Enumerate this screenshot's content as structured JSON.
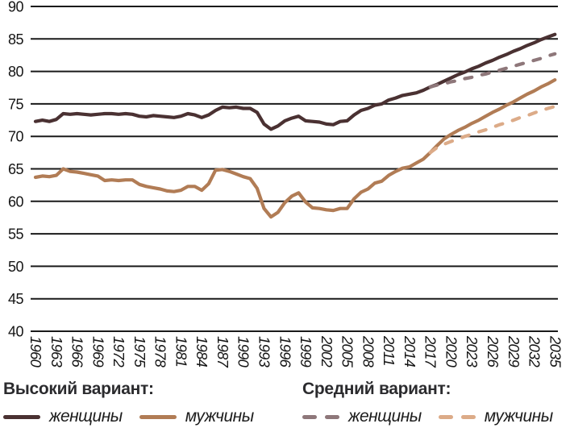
{
  "legend": {
    "high": {
      "heading": "Высокий вариант:",
      "items": [
        {
          "label": "женщины",
          "color": "#4a3132",
          "style": "solid"
        },
        {
          "label": "мужчины",
          "color": "#b17c55",
          "style": "solid"
        }
      ]
    },
    "medium": {
      "heading": "Средний вариант:",
      "items": [
        {
          "label": "женщины",
          "color": "#8e777a",
          "style": "dashed"
        },
        {
          "label": "мужчины",
          "color": "#dcab88",
          "style": "dashed"
        }
      ]
    }
  },
  "chart_data": {
    "type": "line",
    "title": "",
    "xlabel": "",
    "ylabel": "",
    "ylim": [
      40,
      90
    ],
    "ytick_step": 5,
    "grid": "horizontal",
    "grid_color": "#1a1a1a",
    "x_range": [
      1960,
      2035
    ],
    "x_tick_years": [
      1960,
      1963,
      1966,
      1969,
      1972,
      1975,
      1978,
      1981,
      1984,
      1987,
      1990,
      1993,
      1996,
      1999,
      2002,
      2005,
      2008,
      2011,
      2014,
      2017,
      2020,
      2023,
      2026,
      2029,
      2032,
      2035
    ],
    "legend_position": "bottom",
    "series": [
      {
        "id": "women-high",
        "name": "женщины — высокий вариант",
        "color": "#4a3132",
        "style": "solid",
        "start_year": 1960,
        "values": [
          72.3,
          72.5,
          72.3,
          72.6,
          73.5,
          73.4,
          73.5,
          73.4,
          73.3,
          73.4,
          73.5,
          73.5,
          73.4,
          73.5,
          73.4,
          73.1,
          73.0,
          73.2,
          73.1,
          73.0,
          72.9,
          73.1,
          73.5,
          73.3,
          72.9,
          73.3,
          74.0,
          74.5,
          74.4,
          74.5,
          74.3,
          74.3,
          73.7,
          71.9,
          71.1,
          71.6,
          72.4,
          72.8,
          73.1,
          72.4,
          72.3,
          72.2,
          71.9,
          71.8,
          72.3,
          72.4,
          73.3,
          74.0,
          74.3,
          74.8,
          75.0,
          75.6,
          75.9,
          76.3,
          76.5,
          76.7,
          77.1,
          77.6,
          78.0,
          78.5,
          79.0,
          79.5,
          79.9,
          80.4,
          80.8,
          81.3,
          81.7,
          82.2,
          82.6,
          83.1,
          83.5,
          84.0,
          84.4,
          84.9,
          85.3,
          85.7
        ]
      },
      {
        "id": "men-high",
        "name": "мужчины — высокий вариант",
        "color": "#b17c55",
        "style": "solid",
        "start_year": 1960,
        "values": [
          63.7,
          63.9,
          63.8,
          64.0,
          65.0,
          64.6,
          64.5,
          64.3,
          64.1,
          63.9,
          63.2,
          63.3,
          63.2,
          63.3,
          63.3,
          62.6,
          62.3,
          62.1,
          61.9,
          61.6,
          61.5,
          61.7,
          62.3,
          62.3,
          61.7,
          62.7,
          64.8,
          64.9,
          64.6,
          64.2,
          63.8,
          63.5,
          62.0,
          58.9,
          57.6,
          58.3,
          59.8,
          60.8,
          61.3,
          59.9,
          59.0,
          58.9,
          58.7,
          58.6,
          58.9,
          58.9,
          60.4,
          61.4,
          61.9,
          62.8,
          63.1,
          64.0,
          64.6,
          65.1,
          65.3,
          65.9,
          66.5,
          67.5,
          68.6,
          69.6,
          70.3,
          70.9,
          71.4,
          72.0,
          72.5,
          73.1,
          73.7,
          74.2,
          74.8,
          75.3,
          75.9,
          76.5,
          77.0,
          77.6,
          78.1,
          78.7
        ]
      },
      {
        "id": "women-medium",
        "name": "женщины — средний вариант",
        "color": "#8e777a",
        "style": "dashed",
        "start_year": 2017,
        "values": [
          77.6,
          77.9,
          78.1,
          78.4,
          78.6,
          78.9,
          79.1,
          79.4,
          79.6,
          79.9,
          80.2,
          80.5,
          80.8,
          81.1,
          81.4,
          81.7,
          82.0,
          82.4,
          82.7
        ]
      },
      {
        "id": "men-medium",
        "name": "мужчины — средний вариант",
        "color": "#dcab88",
        "style": "dashed",
        "start_year": 2017,
        "values": [
          67.5,
          68.3,
          68.8,
          69.2,
          69.6,
          70.0,
          70.3,
          70.7,
          71.0,
          71.4,
          71.8,
          72.1,
          72.5,
          72.9,
          73.2,
          73.6,
          74.0,
          74.3,
          74.6
        ]
      }
    ]
  }
}
